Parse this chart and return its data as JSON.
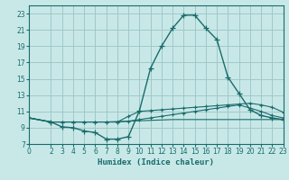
{
  "xlabel": "Humidex (Indice chaleur)",
  "background_color": "#c8e8e8",
  "grid_color": "#a0c8c8",
  "line_color": "#1a6b6b",
  "xlim": [
    0,
    23
  ],
  "ylim": [
    7,
    24
  ],
  "yticks": [
    7,
    9,
    11,
    13,
    15,
    17,
    19,
    21,
    23
  ],
  "xticks": [
    0,
    2,
    3,
    4,
    5,
    6,
    7,
    8,
    9,
    10,
    11,
    12,
    13,
    14,
    15,
    16,
    17,
    18,
    19,
    20,
    21,
    22,
    23
  ],
  "line1_x": [
    0,
    2,
    3,
    4,
    5,
    6,
    7,
    8,
    9,
    10,
    11,
    12,
    13,
    14,
    15,
    16,
    17,
    18,
    19,
    20,
    21,
    22,
    23
  ],
  "line1_y": [
    10.2,
    9.7,
    9.1,
    9.0,
    8.6,
    8.4,
    7.6,
    7.6,
    7.9,
    11.1,
    16.3,
    19.0,
    21.2,
    22.8,
    22.8,
    21.2,
    19.8,
    15.2,
    13.2,
    11.2,
    10.5,
    10.2,
    10.0
  ],
  "line2_x": [
    0,
    2,
    3,
    4,
    5,
    6,
    7,
    8,
    9,
    10,
    11,
    12,
    13,
    14,
    15,
    16,
    17,
    18,
    19,
    20,
    21,
    22,
    23
  ],
  "line2_y": [
    10.2,
    9.7,
    9.7,
    9.7,
    9.7,
    9.7,
    9.7,
    9.7,
    9.8,
    10.0,
    10.2,
    10.4,
    10.6,
    10.8,
    11.0,
    11.2,
    11.4,
    11.6,
    11.8,
    11.4,
    11.0,
    10.5,
    10.2
  ],
  "line3_x": [
    0,
    2,
    3,
    4,
    5,
    6,
    7,
    8,
    9,
    10,
    11,
    12,
    13,
    14,
    15,
    16,
    17,
    18,
    19,
    20,
    21,
    22,
    23
  ],
  "line3_y": [
    10.2,
    9.7,
    9.7,
    9.7,
    9.7,
    9.7,
    9.7,
    9.7,
    10.4,
    11.0,
    11.1,
    11.2,
    11.3,
    11.4,
    11.5,
    11.6,
    11.7,
    11.8,
    11.9,
    12.0,
    11.8,
    11.5,
    10.9
  ],
  "line4_x": [
    0,
    2,
    3,
    5,
    7,
    9,
    11,
    13,
    15,
    17,
    19,
    21,
    23
  ],
  "line4_y": [
    10.2,
    9.7,
    9.7,
    9.7,
    9.7,
    9.8,
    9.9,
    10.0,
    10.0,
    10.0,
    10.0,
    10.0,
    10.0
  ]
}
